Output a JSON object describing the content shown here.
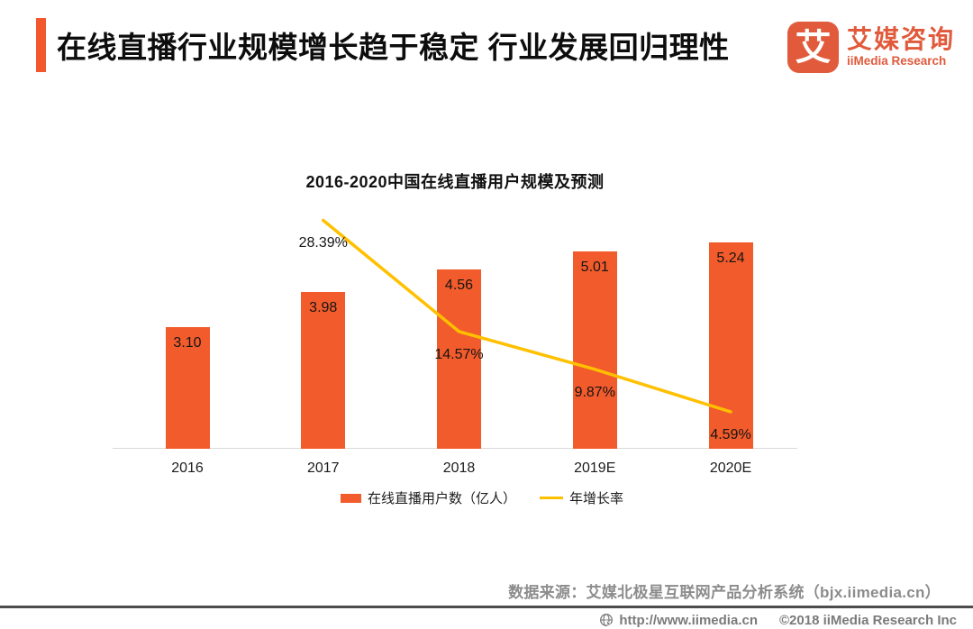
{
  "header": {
    "title": "在线直播行业规模增长趋于稳定 行业发展回归理性",
    "accent_color": "#F2572E",
    "logo": {
      "glyph": "艾",
      "name_cn": "艾媒咨询",
      "name_en": "iiMedia Research",
      "color": "#E15A3B"
    }
  },
  "chart_data": {
    "type": "bar",
    "title": "2016-2020中国在线直播用户规模及预测",
    "categories": [
      "2016",
      "2017",
      "2018",
      "2019E",
      "2020E"
    ],
    "series": [
      {
        "name": "在线直播用户数（亿人）",
        "type": "bar",
        "color": "#F25B2B",
        "values": [
          3.1,
          3.98,
          4.56,
          5.01,
          5.24
        ],
        "labels": [
          "3.10",
          "3.98",
          "4.56",
          "5.01",
          "5.24"
        ]
      },
      {
        "name": "年增长率",
        "type": "line",
        "color": "#FFC000",
        "values": [
          null,
          28.39,
          14.57,
          9.87,
          4.59
        ],
        "labels": [
          null,
          "28.39%",
          "14.57%",
          "9.87%",
          "4.59%"
        ]
      }
    ],
    "bar_axis": {
      "min": 0,
      "max": 5.24
    },
    "line_axis_pct": {
      "min": 0,
      "max": 30
    },
    "grid": "off",
    "legend_position": "bottom"
  },
  "source": "数据来源：艾媒北极星互联网产品分析系统（bjx.iimedia.cn）",
  "footer": {
    "url": "http://www.iimedia.cn",
    "copyright": "©2018  iiMedia Research Inc"
  }
}
